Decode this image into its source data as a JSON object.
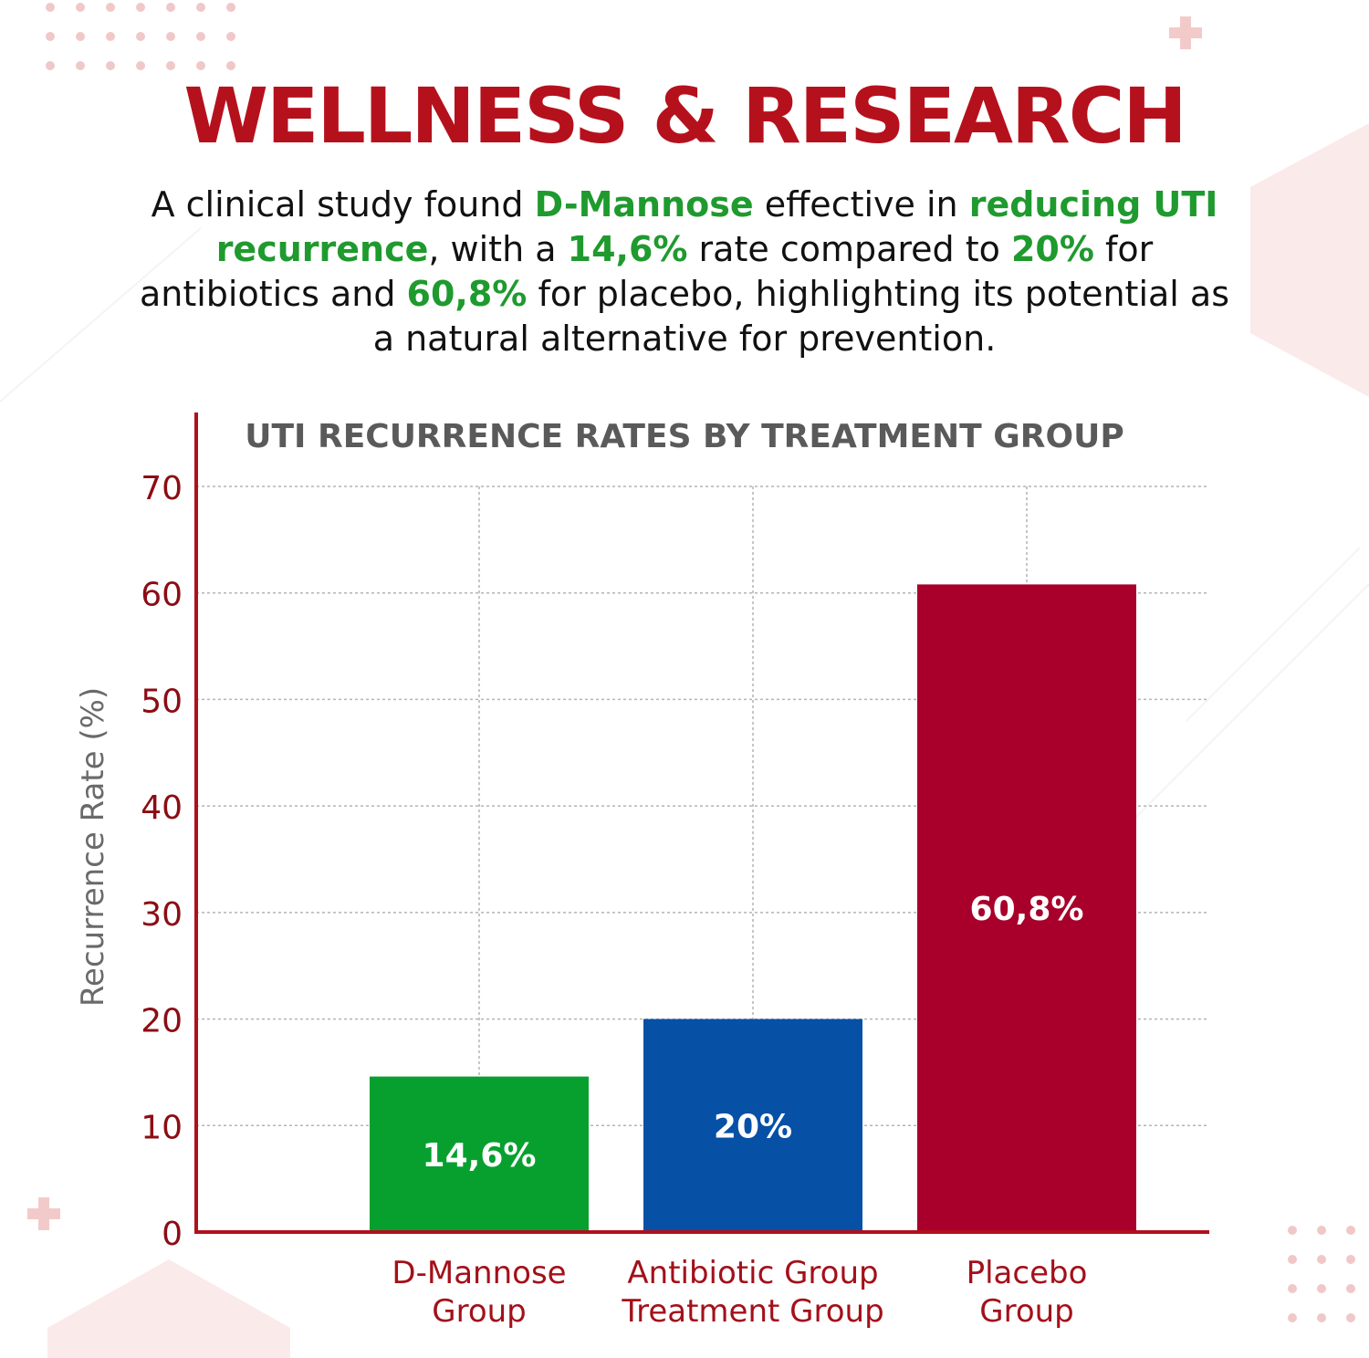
{
  "heading": "WELLNESS & RESEARCH",
  "intro": {
    "segments": [
      {
        "text": "A clinical study found ",
        "highlight": false
      },
      {
        "text": "D-Mannose",
        "highlight": true
      },
      {
        "text": " effective in ",
        "highlight": false
      },
      {
        "text": "reducing UTI recurrence",
        "highlight": true
      },
      {
        "text": ", with a ",
        "highlight": false
      },
      {
        "text": "14,6%",
        "highlight": true
      },
      {
        "text": " rate compared to ",
        "highlight": false
      },
      {
        "text": "20%",
        "highlight": true
      },
      {
        "text": " for antibiotics and ",
        "highlight": false
      },
      {
        "text": "60,8%",
        "highlight": true
      },
      {
        "text": " for placebo, highlighting its potential as a natural alternative for prevention.",
        "highlight": false
      }
    ]
  },
  "colors": {
    "heading": "#b5111d",
    "highlight": "#1f9a2e",
    "axis": "#b0101c",
    "tick_label": "#8b0d14",
    "category_label": "#a3101a"
  },
  "chart_data": {
    "type": "bar",
    "title": "UTI RECURRENCE RATES BY TREATMENT GROUP",
    "ylabel": "Recurrence Rate (%)",
    "xlabel": "",
    "ylim": [
      0,
      70
    ],
    "yticks": [
      0,
      10,
      20,
      30,
      40,
      50,
      60,
      70
    ],
    "grid": true,
    "categories": [
      [
        "D-Mannose",
        "Group"
      ],
      [
        "Antibiotic Group",
        "Treatment Group"
      ],
      [
        "Placebo",
        "Group"
      ]
    ],
    "values": [
      14.6,
      20,
      60.8
    ],
    "data_labels": [
      "14,6%",
      "20%",
      "60,8%"
    ],
    "bar_colors": [
      "#07a02e",
      "#0650a6",
      "#a8002a"
    ]
  }
}
